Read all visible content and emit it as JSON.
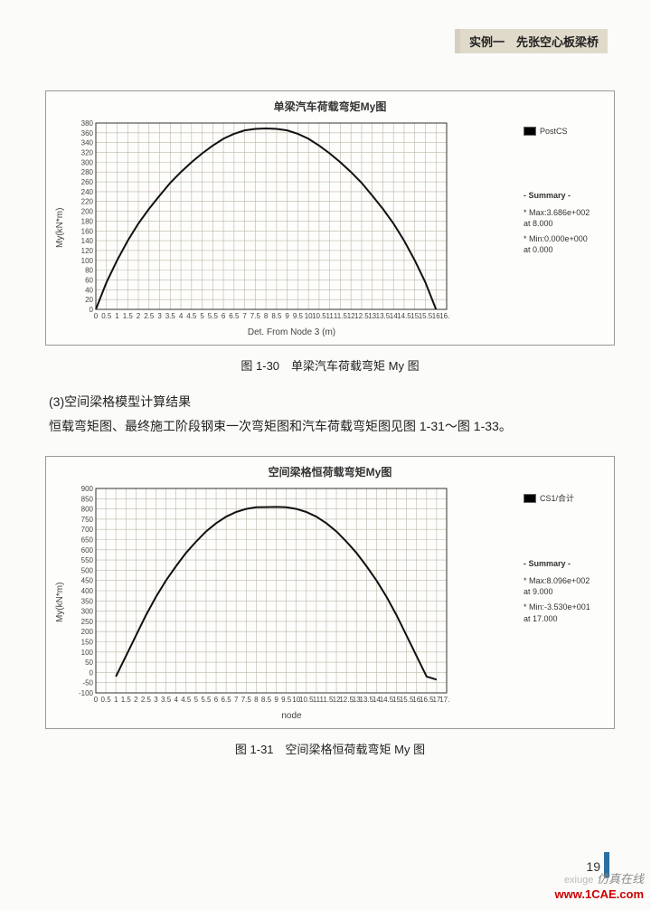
{
  "header": {
    "tab": "实例一　先张空心板梁桥"
  },
  "chart1": {
    "type": "line",
    "title": "单梁汽车荷载弯矩My图",
    "xlabel": "Det. From Node 3 (m)",
    "ylabel": "My(kN*m)",
    "legend_label": "PostCS",
    "summary_title": "- Summary -",
    "summary_max": "* Max:3.686e+002",
    "summary_max_at": "at 8.000",
    "summary_min": "* Min:0.000e+000",
    "summary_min_at": "at 0.000",
    "xlim": [
      0,
      16.5
    ],
    "xtick_step": 0.5,
    "ylim": [
      0,
      380
    ],
    "ytick_step": 20,
    "background": "#fdfdfb",
    "grid_color": "#bfb7a8",
    "curve_color": "#111111",
    "curve": [
      [
        0,
        0
      ],
      [
        0.5,
        55
      ],
      [
        1,
        100
      ],
      [
        1.5,
        140
      ],
      [
        2,
        175
      ],
      [
        2.5,
        205
      ],
      [
        3,
        232
      ],
      [
        3.5,
        258
      ],
      [
        4,
        280
      ],
      [
        4.5,
        300
      ],
      [
        5,
        318
      ],
      [
        5.5,
        334
      ],
      [
        6,
        348
      ],
      [
        6.5,
        358
      ],
      [
        7,
        365
      ],
      [
        7.5,
        368
      ],
      [
        8,
        369
      ],
      [
        8.5,
        368
      ],
      [
        9,
        365
      ],
      [
        9.5,
        358
      ],
      [
        10,
        348
      ],
      [
        10.5,
        334
      ],
      [
        11,
        318
      ],
      [
        11.5,
        300
      ],
      [
        12,
        280
      ],
      [
        12.5,
        258
      ],
      [
        13,
        232
      ],
      [
        13.5,
        205
      ],
      [
        14,
        175
      ],
      [
        14.5,
        140
      ],
      [
        15,
        100
      ],
      [
        15.5,
        55
      ],
      [
        16,
        0
      ]
    ]
  },
  "caption1": "图 1-30　单梁汽车荷载弯矩 My 图",
  "body": {
    "line1": "(3)空间梁格模型计算结果",
    "line2": "恒载弯矩图、最终施工阶段钢束一次弯矩图和汽车荷载弯矩图见图 1-31～图 1-33。"
  },
  "chart2": {
    "type": "line",
    "title": "空间梁格恒荷载弯矩My图",
    "xlabel": "node",
    "ylabel": "My(kN*m)",
    "legend_label": "CS1/合计",
    "summary_title": "- Summary -",
    "summary_max": "* Max:8.096e+002",
    "summary_max_at": "at 9.000",
    "summary_min": "* Min:-3.530e+001",
    "summary_min_at": "at 17.000",
    "xlim": [
      0,
      17.5
    ],
    "xtick_step": 0.5,
    "ylim": [
      -100,
      900
    ],
    "ytick_step": 50,
    "background": "#fdfdfb",
    "grid_color": "#bfb7a8",
    "curve_color": "#111111",
    "curve": [
      [
        1,
        -20
      ],
      [
        1.5,
        80
      ],
      [
        2,
        180
      ],
      [
        2.5,
        280
      ],
      [
        3,
        370
      ],
      [
        3.5,
        450
      ],
      [
        4,
        520
      ],
      [
        4.5,
        585
      ],
      [
        5,
        640
      ],
      [
        5.5,
        690
      ],
      [
        6,
        730
      ],
      [
        6.5,
        762
      ],
      [
        7,
        785
      ],
      [
        7.5,
        800
      ],
      [
        8,
        808
      ],
      [
        8.5,
        809
      ],
      [
        9,
        810
      ],
      [
        9.5,
        808
      ],
      [
        10,
        800
      ],
      [
        10.5,
        785
      ],
      [
        11,
        762
      ],
      [
        11.5,
        730
      ],
      [
        12,
        690
      ],
      [
        12.5,
        640
      ],
      [
        13,
        585
      ],
      [
        13.5,
        520
      ],
      [
        14,
        450
      ],
      [
        14.5,
        370
      ],
      [
        15,
        280
      ],
      [
        15.5,
        180
      ],
      [
        16,
        80
      ],
      [
        16.5,
        -20
      ],
      [
        17,
        -35
      ]
    ]
  },
  "caption2": "图 1-31　空间梁格恒荷载弯矩 My 图",
  "page_number": "19",
  "watermark": {
    "line1": "仿真在线",
    "line2": "www.1CAE.com",
    "prefix": "exiuge"
  }
}
